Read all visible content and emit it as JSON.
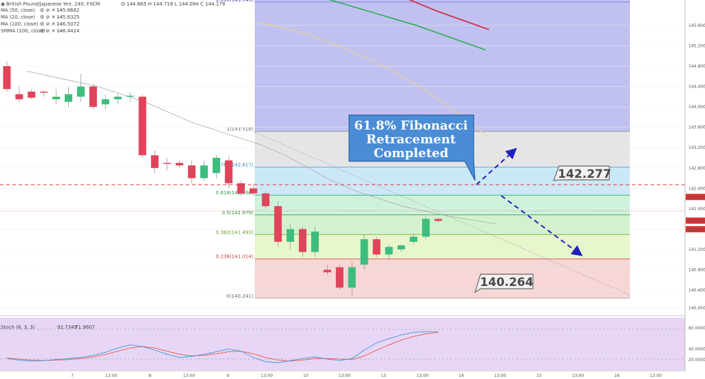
{
  "header": {
    "symbol": "British Pound/Japanese Yen, 240, FXCM",
    "ohlc": "O 144.665  H 144.718  L 144.084  C 144.179",
    "indicators": [
      {
        "label": "MA (50, close)",
        "value": "145.6682",
        "color": "#e6c000"
      },
      {
        "label": "MA (20, close)",
        "value": "145.6325",
        "color": "#e8d840"
      },
      {
        "label": "MA (100, close)",
        "value": "146.5072",
        "color": "#22b14c"
      },
      {
        "label": "SMMA (100, close)",
        "value": "146.4424",
        "color": "#d0304c"
      }
    ]
  },
  "callout": {
    "lines": [
      "61.8% Fibonacci",
      "Retracement",
      "Completed"
    ]
  },
  "labels": {
    "upper": "142.277",
    "lower": "140.264"
  },
  "price_axis": {
    "ticks": [
      "145.600",
      "145.200",
      "144.800",
      "144.400",
      "144.000",
      "143.600",
      "143.200",
      "142.800",
      "142.400",
      "142.000",
      "141.600",
      "141.200",
      "140.800",
      "140.400",
      "140.050"
    ],
    "tick_values": [
      145.6,
      145.2,
      144.8,
      144.4,
      144.0,
      143.6,
      143.2,
      142.8,
      142.4,
      142.0,
      141.6,
      141.2,
      140.8,
      140.4,
      140.05
    ],
    "markers": [
      {
        "text": "142.224",
        "value": 142.224,
        "bg": "#e03030"
      },
      {
        "text": "141.759",
        "value": 141.759,
        "bg": "#e03030"
      },
      {
        "text": "03:54:07",
        "value": 141.59,
        "bg": "#e03030"
      }
    ]
  },
  "time_axis": {
    "ticks": [
      "7",
      "13:00",
      "8",
      "13:00",
      "9",
      "13:00",
      "10",
      "13:00",
      "13",
      "13:00",
      "14",
      "13:00",
      "15",
      "13:00",
      "16",
      "13:00"
    ]
  },
  "fib_levels": [
    {
      "ratio": "1.618",
      "price": 145.543,
      "label": "1.618(145.543)",
      "fill": "#b6b6ef",
      "line": "#8888dd",
      "text": "#3b3bb0"
    },
    {
      "ratio": "1",
      "price": 143.518,
      "label": "1(143.518)",
      "fill": "#e0e0e0",
      "line": "#999999",
      "text": "#666666"
    },
    {
      "ratio": "0.786",
      "price": 142.817,
      "label": "0.786(142.817)",
      "fill": "#c2e4f6",
      "line": "#5aa8d8",
      "text": "#3388bb"
    },
    {
      "ratio": "0.618",
      "price": 142.266,
      "label": "0.618(142.266)",
      "fill": "#c6eed6",
      "line": "#3cb878",
      "text": "#2a9a5a"
    },
    {
      "ratio": "0.5",
      "price": 141.879,
      "label": "0.5(141.879)",
      "fill": "#caf0c6",
      "line": "#44aa55",
      "text": "#2e8a3e"
    },
    {
      "ratio": "0.382",
      "price": 141.493,
      "label": "0.382(141.493)",
      "fill": "#e4f4c2",
      "line": "#88bb44",
      "text": "#6a9a2a"
    },
    {
      "ratio": "0.236",
      "price": 141.014,
      "label": "0.236(141.014)",
      "fill": "#f4cfcf",
      "line": "#d96060",
      "text": "#c04040"
    },
    {
      "ratio": "0",
      "price": 140.241,
      "label": "0(140.241)",
      "fill": "none",
      "line": "#aaaaaa",
      "text": "#666666"
    }
  ],
  "stoch": {
    "label": "Stoch (8, 3, 3)",
    "k_value": "92.7349",
    "d_value": "71.9607",
    "ticks": [
      "80.0000",
      "40.0000",
      "20.0000"
    ],
    "tick_values": [
      80,
      40,
      20
    ]
  },
  "colors": {
    "up": "#3dbd7d",
    "down": "#e0445a",
    "accent": "#2f6fc0"
  },
  "chart_data": {
    "type": "candlestick",
    "title": "British Pound/Japanese Yen, 240, FXCM",
    "ylim": [
      140.0,
      145.8
    ],
    "candles": [
      {
        "o": 144.8,
        "h": 144.9,
        "l": 144.3,
        "c": 144.35
      },
      {
        "o": 144.25,
        "h": 144.4,
        "l": 144.1,
        "c": 144.15
      },
      {
        "o": 144.3,
        "h": 144.35,
        "l": 144.15,
        "c": 144.18
      },
      {
        "o": 144.3,
        "h": 144.32,
        "l": 144.2,
        "c": 144.28
      },
      {
        "o": 144.15,
        "h": 144.35,
        "l": 144.05,
        "c": 144.2
      },
      {
        "o": 144.1,
        "h": 144.4,
        "l": 144.0,
        "c": 144.25
      },
      {
        "o": 144.2,
        "h": 144.65,
        "l": 144.1,
        "c": 144.4
      },
      {
        "o": 144.4,
        "h": 144.45,
        "l": 143.95,
        "c": 144.0
      },
      {
        "o": 144.05,
        "h": 144.25,
        "l": 143.95,
        "c": 144.15
      },
      {
        "o": 144.15,
        "h": 144.25,
        "l": 144.05,
        "c": 144.2
      },
      {
        "o": 144.2,
        "h": 144.3,
        "l": 144.1,
        "c": 144.22
      },
      {
        "o": 144.2,
        "h": 144.25,
        "l": 143.0,
        "c": 143.05
      },
      {
        "o": 143.05,
        "h": 143.15,
        "l": 142.7,
        "c": 142.8
      },
      {
        "o": 142.9,
        "h": 143.0,
        "l": 142.75,
        "c": 142.88
      },
      {
        "o": 142.9,
        "h": 142.95,
        "l": 142.8,
        "c": 142.85
      },
      {
        "o": 142.85,
        "h": 142.95,
        "l": 142.5,
        "c": 142.6
      },
      {
        "o": 142.6,
        "h": 142.95,
        "l": 142.55,
        "c": 142.85
      },
      {
        "o": 142.7,
        "h": 143.05,
        "l": 142.6,
        "c": 143.0
      },
      {
        "o": 142.95,
        "h": 143.05,
        "l": 142.4,
        "c": 142.5
      },
      {
        "o": 142.5,
        "h": 142.55,
        "l": 142.25,
        "c": 142.3
      },
      {
        "o": 142.4,
        "h": 142.5,
        "l": 142.25,
        "c": 142.3
      },
      {
        "o": 142.3,
        "h": 142.35,
        "l": 142.0,
        "c": 142.05
      },
      {
        "o": 142.05,
        "h": 142.15,
        "l": 141.25,
        "c": 141.35
      },
      {
        "o": 141.35,
        "h": 141.7,
        "l": 141.2,
        "c": 141.6
      },
      {
        "o": 141.6,
        "h": 141.65,
        "l": 141.05,
        "c": 141.15
      },
      {
        "o": 141.15,
        "h": 141.65,
        "l": 141.05,
        "c": 141.55
      },
      {
        "o": 140.8,
        "h": 140.9,
        "l": 140.7,
        "c": 140.75
      },
      {
        "o": 140.85,
        "h": 140.9,
        "l": 140.4,
        "c": 140.45
      },
      {
        "o": 140.45,
        "h": 140.95,
        "l": 140.3,
        "c": 140.85
      },
      {
        "o": 140.9,
        "h": 141.5,
        "l": 140.8,
        "c": 141.4
      },
      {
        "o": 141.4,
        "h": 141.45,
        "l": 141.05,
        "c": 141.1
      },
      {
        "o": 141.1,
        "h": 141.3,
        "l": 141.0,
        "c": 141.25
      },
      {
        "o": 141.2,
        "h": 141.3,
        "l": 141.15,
        "c": 141.28
      },
      {
        "o": 141.35,
        "h": 141.5,
        "l": 141.3,
        "c": 141.45
      },
      {
        "o": 141.45,
        "h": 141.85,
        "l": 141.4,
        "c": 141.8
      },
      {
        "o": 141.8,
        "h": 141.82,
        "l": 141.72,
        "c": 141.76
      }
    ],
    "ma_50": [
      145.66,
      145.63,
      145.58,
      145.52,
      145.46,
      145.38,
      145.3,
      145.22,
      145.12,
      145.02,
      144.91,
      144.8,
      144.68,
      144.55,
      144.41,
      144.26,
      144.1,
      143.93,
      143.76,
      143.58,
      143.4
    ],
    "ma_20": [
      144.7,
      144.6,
      144.5,
      144.4,
      144.25,
      144.1,
      143.9,
      143.7,
      143.55,
      143.4,
      143.25,
      143.05,
      142.8,
      142.55,
      142.35,
      142.2,
      142.05,
      141.95,
      141.85,
      141.78,
      141.7
    ],
    "ma_100": [
      146.5,
      146.4,
      146.3,
      146.2,
      146.1,
      146.0,
      145.9,
      145.8,
      145.7,
      145.6,
      145.48,
      145.36,
      145.24,
      145.12
    ],
    "smma_100": [
      146.44,
      146.3,
      146.16,
      146.02,
      145.88,
      145.76,
      145.64,
      145.52
    ],
    "stoch_k": [
      22,
      19,
      17,
      18,
      20,
      22,
      24,
      28,
      34,
      42,
      48,
      45,
      38,
      30,
      24,
      26,
      30,
      35,
      40,
      36,
      24,
      16,
      14,
      18,
      22,
      25,
      21,
      18,
      22,
      38,
      52,
      60,
      67,
      72,
      73,
      73
    ],
    "stoch_d": [
      23,
      21,
      19,
      18,
      19,
      20,
      22,
      25,
      30,
      36,
      42,
      45,
      42,
      36,
      30,
      27,
      28,
      31,
      35,
      36,
      31,
      24,
      19,
      17,
      19,
      22,
      22,
      21,
      20,
      27,
      38,
      48,
      57,
      64,
      69,
      72
    ]
  }
}
